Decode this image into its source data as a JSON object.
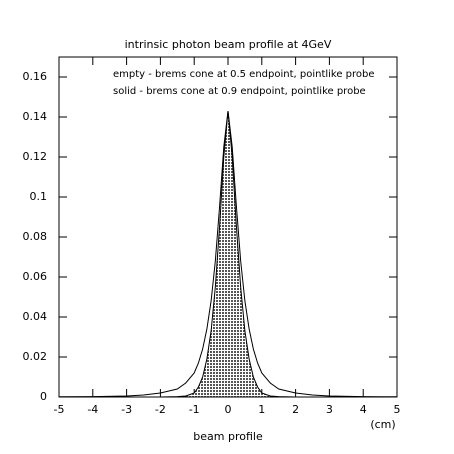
{
  "chart_data": {
    "type": "line",
    "title": "intrinsic photon beam profile at 4GeV",
    "annotations": [
      "empty - brems cone at 0.5 endpoint, pointlike probe",
      "solid - brems cone at 0.9 endpoint, pointlike probe"
    ],
    "x_label": "beam profile",
    "x_unit": "(cm)",
    "x": [
      -5,
      -4,
      -3,
      -2.5,
      -2,
      -1.5,
      -1.25,
      -1,
      -0.875,
      -0.75,
      -0.625,
      -0.5,
      -0.375,
      -0.25,
      -0.125,
      0,
      0.125,
      0.25,
      0.375,
      0.5,
      0.625,
      0.75,
      0.875,
      1,
      1.25,
      1.5,
      2,
      2.5,
      3,
      4,
      5
    ],
    "series": [
      {
        "name": "empty",
        "color": "#000000",
        "fill": false,
        "values": [
          0.0001,
          0.0002,
          0.0005,
          0.001,
          0.002,
          0.004,
          0.007,
          0.012,
          0.017,
          0.024,
          0.034,
          0.048,
          0.068,
          0.095,
          0.125,
          0.143,
          0.125,
          0.095,
          0.068,
          0.048,
          0.034,
          0.024,
          0.017,
          0.012,
          0.007,
          0.004,
          0.002,
          0.001,
          0.0005,
          0.0002,
          0.0001
        ]
      },
      {
        "name": "solid",
        "color": "#555555",
        "fill": true,
        "values": [
          0,
          0,
          0,
          0,
          0,
          0.0002,
          0.0005,
          0.002,
          0.005,
          0.01,
          0.019,
          0.033,
          0.055,
          0.085,
          0.12,
          0.143,
          0.12,
          0.085,
          0.055,
          0.033,
          0.019,
          0.01,
          0.005,
          0.002,
          0.0005,
          0.0002,
          0,
          0,
          0,
          0,
          0
        ]
      }
    ],
    "xlim": [
      -5,
      5
    ],
    "ylim": [
      0,
      0.17
    ],
    "xticks": [
      -5,
      -4,
      -3,
      -2,
      -1,
      0,
      1,
      2,
      3,
      4,
      5
    ],
    "yticks": [
      0,
      0.02,
      0.04,
      0.06,
      0.08,
      0.1,
      0.12,
      0.14,
      0.16
    ]
  }
}
